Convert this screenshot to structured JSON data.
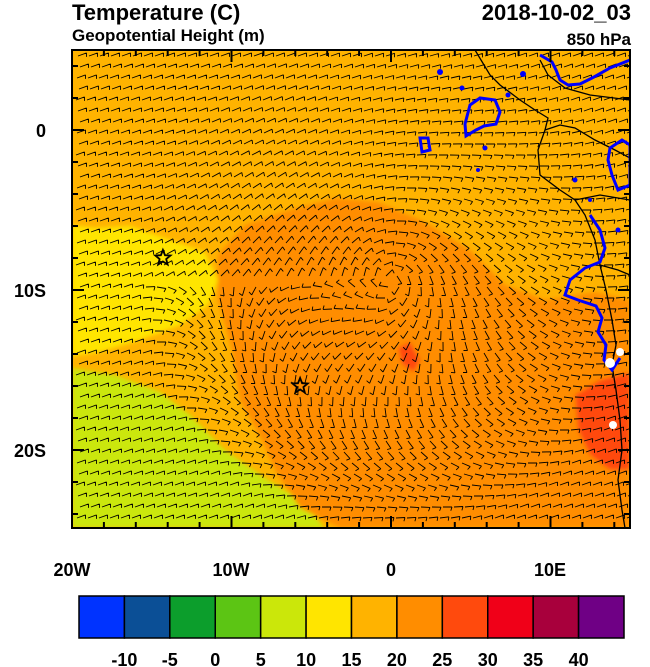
{
  "header": {
    "title": "Temperature (C)",
    "subtitle": "Geopotential Height (m)",
    "datetime": "2018-10-02_03",
    "level": "850 hPa"
  },
  "map": {
    "x_tick_labels": [
      "20W",
      "10W",
      "0",
      "10E"
    ],
    "y_tick_labels": [
      "0",
      "10S",
      "20S"
    ],
    "markers": [
      {
        "name": "star-marker-north",
        "lon": -14.3,
        "lat": -8.0
      },
      {
        "name": "star-marker-south",
        "lon": -5.7,
        "lat": -16.0
      }
    ]
  },
  "colorbar": {
    "labels": [
      "-10",
      "-5",
      "0",
      "5",
      "10",
      "15",
      "20",
      "25",
      "30",
      "35",
      "40"
    ],
    "colors": [
      "#0033ff",
      "#0b4f96",
      "#0c9e2c",
      "#5cc514",
      "#cbe70a",
      "#ffe500",
      "#ffb300",
      "#ff8d00",
      "#ff4a0d",
      "#f00018",
      "#a8003c",
      "#6f0085"
    ]
  },
  "colors": {
    "coastline": "#0000ff",
    "border": "#000000",
    "barb": "#000000"
  }
}
